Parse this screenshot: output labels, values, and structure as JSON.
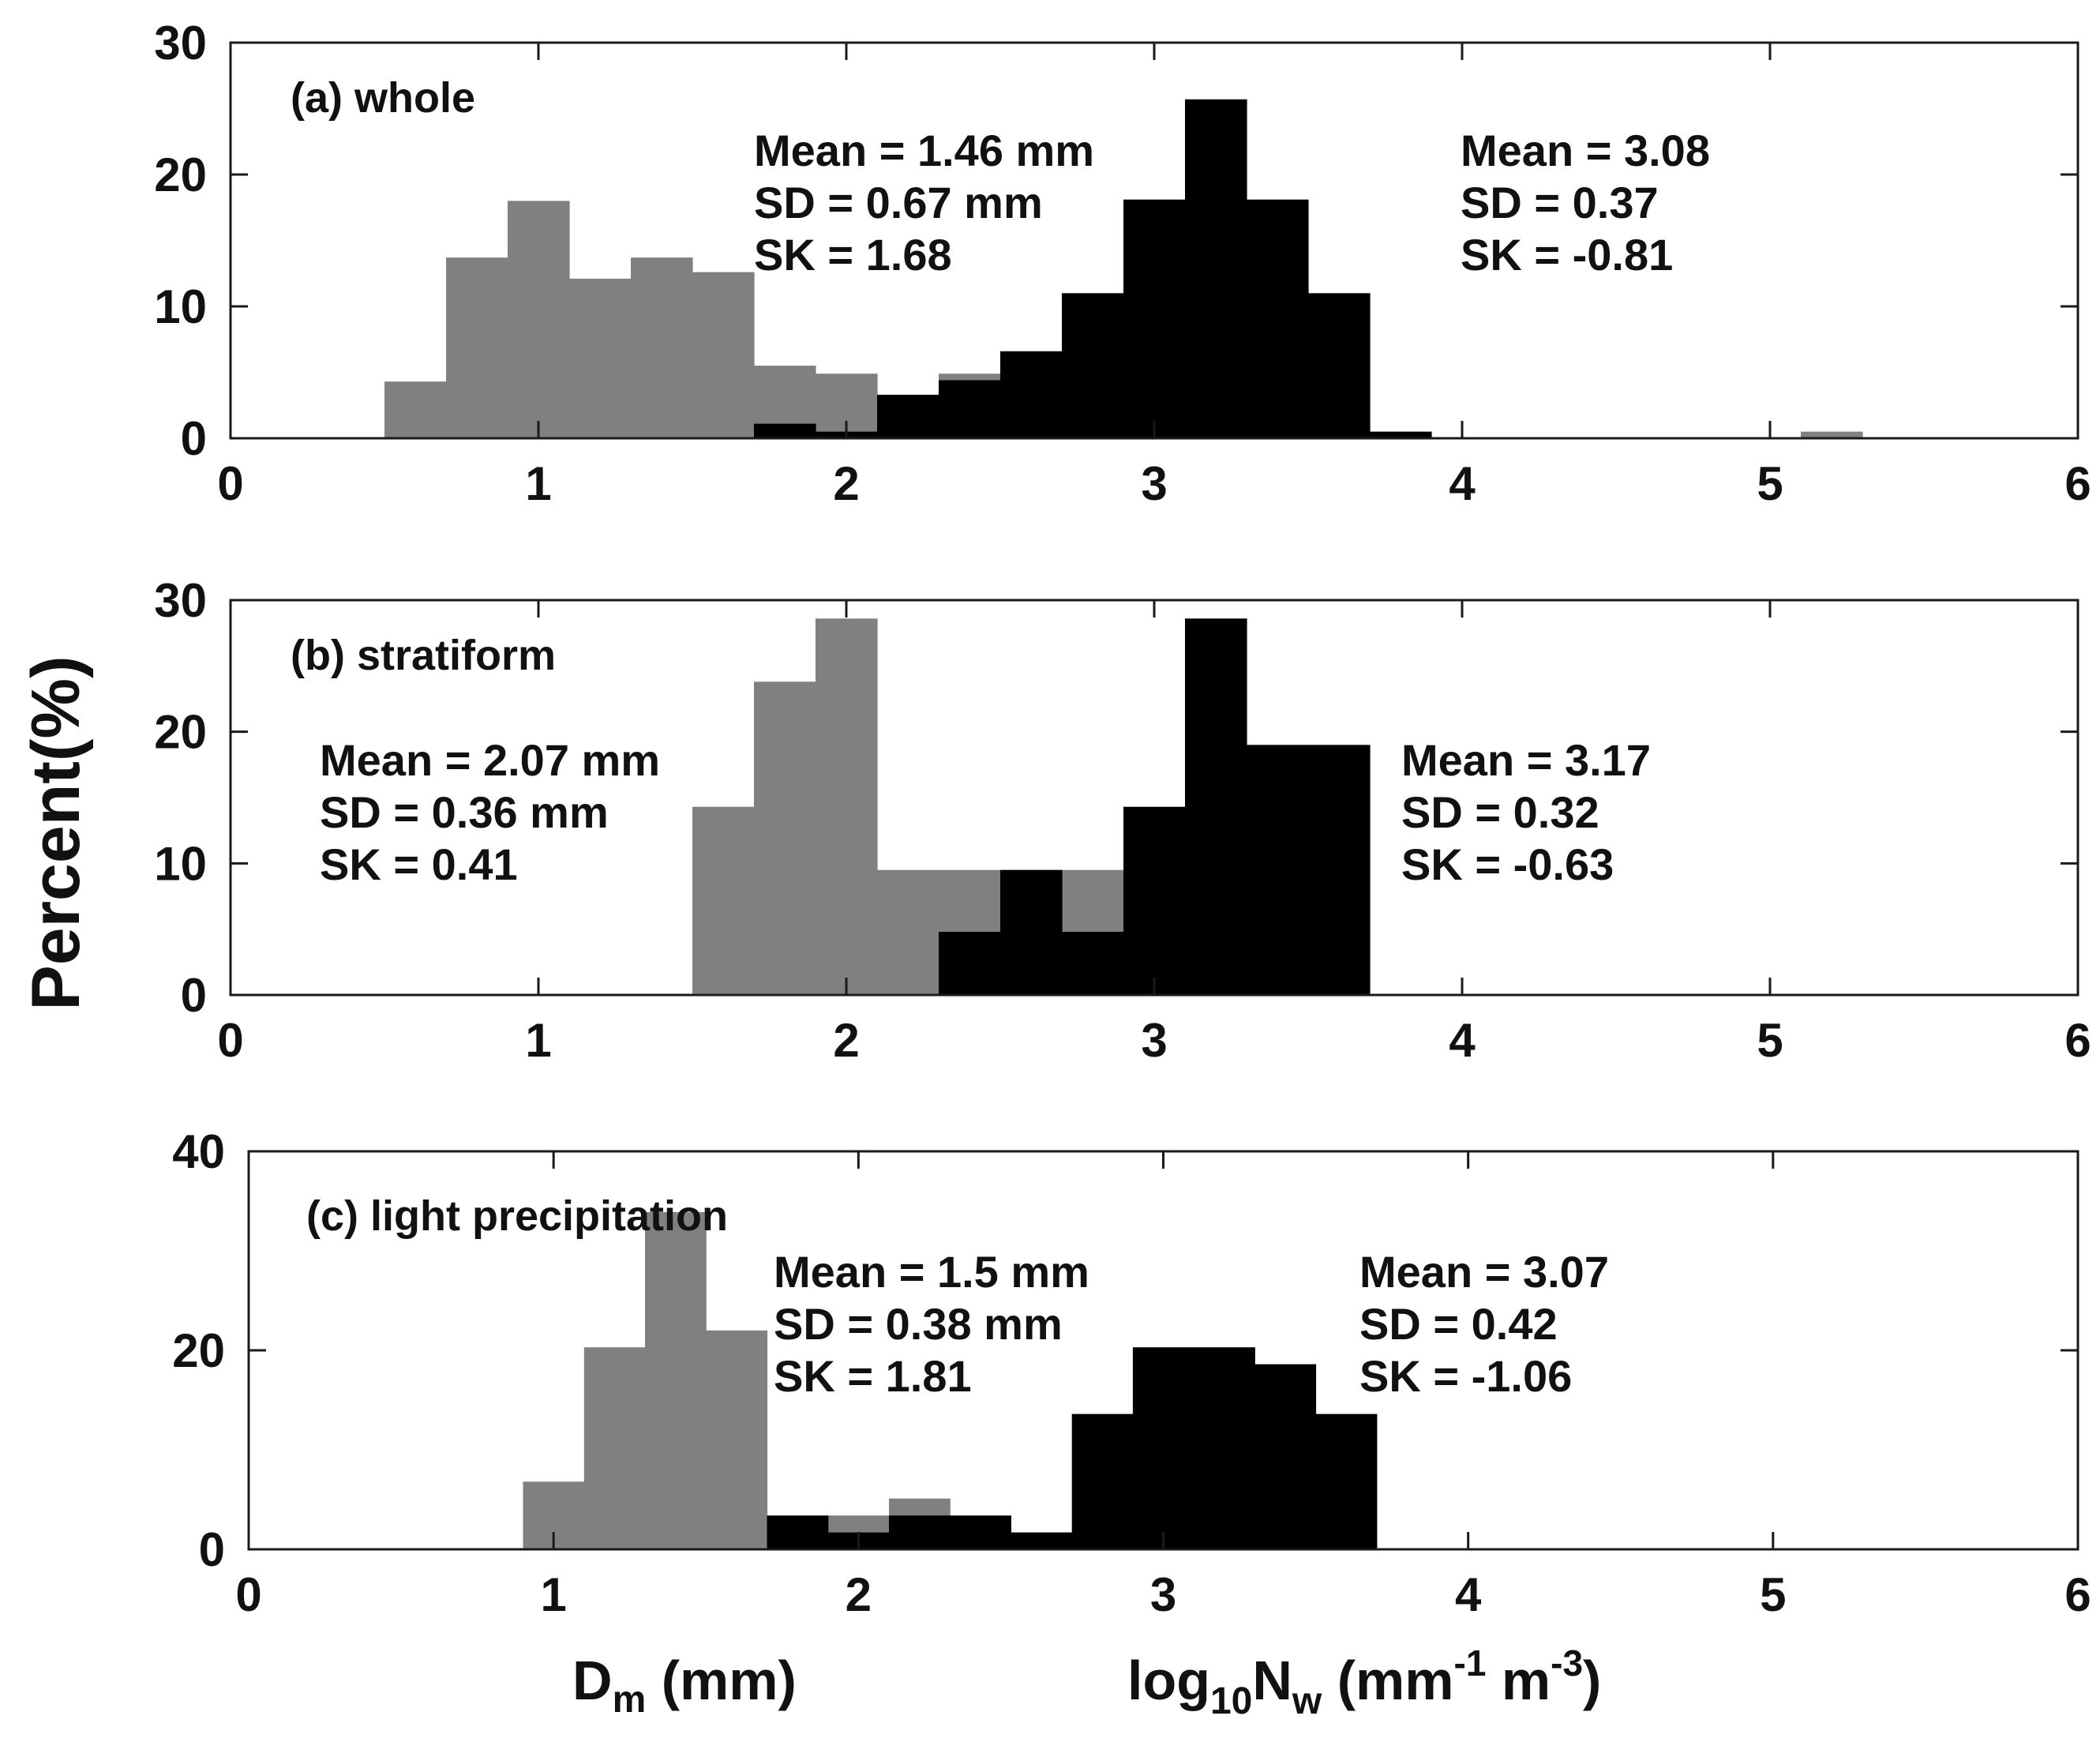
{
  "figure": {
    "ylabel": "Percent(%)",
    "xlabel_dm": {
      "main": "D",
      "sub": "m",
      "rest": " (mm)"
    },
    "xlabel_nw": {
      "a": "log",
      "sub1": "10",
      "b": "N",
      "sub2": "w",
      "c": " (mm",
      "sup1": "-1",
      "d": " m",
      "sup2": "-3",
      "e": ")"
    }
  },
  "chart_data": [
    {
      "type": "bar",
      "title": "(a) whole",
      "xlim": [
        0,
        6
      ],
      "ylim": [
        0,
        30
      ],
      "xticks": [
        "0",
        "1",
        "2",
        "3",
        "4",
        "5",
        "6"
      ],
      "yticks": [
        "0",
        "10",
        "20",
        "30"
      ],
      "series": [
        {
          "name": "Dm (mm)",
          "color": "#808080",
          "bins": [
            [
              0.5,
              0.7,
              4.3
            ],
            [
              0.7,
              0.9,
              13.7
            ],
            [
              0.9,
              1.1,
              18.0
            ],
            [
              1.1,
              1.3,
              12.1
            ],
            [
              1.3,
              1.5,
              13.7
            ],
            [
              1.5,
              1.7,
              12.6
            ],
            [
              1.7,
              1.9,
              5.5
            ],
            [
              1.9,
              2.1,
              4.9
            ],
            [
              2.3,
              2.5,
              4.9
            ],
            [
              5.1,
              5.3,
              0.5
            ]
          ]
        },
        {
          "name": "log10Nw (mm-1 m-3)",
          "color": "#000000",
          "bins": [
            [
              1.7,
              1.9,
              1.1
            ],
            [
              1.9,
              2.1,
              0.5
            ],
            [
              2.1,
              2.3,
              3.3
            ],
            [
              2.3,
              2.5,
              4.4
            ],
            [
              2.5,
              2.7,
              6.6
            ],
            [
              2.7,
              2.9,
              11.0
            ],
            [
              2.9,
              3.1,
              18.1
            ],
            [
              3.1,
              3.3,
              25.7
            ],
            [
              3.3,
              3.5,
              18.1
            ],
            [
              3.5,
              3.7,
              11.0
            ],
            [
              3.7,
              3.9,
              0.5
            ]
          ]
        }
      ],
      "stats": [
        {
          "mean": "Mean = 1.46 mm",
          "sd": "SD = 0.67 mm",
          "sk": "SK = 1.68"
        },
        {
          "mean": "Mean = 3.08",
          "sd": "SD = 0.37",
          "sk": "SK = -0.81"
        }
      ]
    },
    {
      "type": "bar",
      "title": "(b) stratiform",
      "xlim": [
        0,
        6
      ],
      "ylim": [
        0,
        30
      ],
      "xticks": [
        "0",
        "1",
        "2",
        "3",
        "4",
        "5",
        "6"
      ],
      "yticks": [
        "0",
        "10",
        "20",
        "30"
      ],
      "series": [
        {
          "name": "Dm (mm)",
          "color": "#808080",
          "bins": [
            [
              1.5,
              1.7,
              14.3
            ],
            [
              1.7,
              1.9,
              23.8
            ],
            [
              1.9,
              2.1,
              28.6
            ],
            [
              2.1,
              2.3,
              9.5
            ],
            [
              2.3,
              2.5,
              9.5
            ],
            [
              2.5,
              2.7,
              9.5
            ],
            [
              2.7,
              2.9,
              9.5
            ]
          ]
        },
        {
          "name": "log10Nw (mm-1 m-3)",
          "color": "#000000",
          "bins": [
            [
              2.3,
              2.5,
              4.8
            ],
            [
              2.5,
              2.7,
              9.5
            ],
            [
              2.7,
              2.9,
              4.8
            ],
            [
              2.9,
              3.1,
              14.3
            ],
            [
              3.1,
              3.3,
              28.6
            ],
            [
              3.3,
              3.5,
              19.0
            ],
            [
              3.5,
              3.7,
              19.0
            ]
          ]
        }
      ],
      "stats": [
        {
          "mean": "Mean = 2.07 mm",
          "sd": "SD = 0.36 mm",
          "sk": "SK = 0.41"
        },
        {
          "mean": "Mean = 3.17",
          "sd": "SD = 0.32",
          "sk": "SK = -0.63"
        }
      ]
    },
    {
      "type": "bar",
      "title": "(c) light precipitation",
      "xlim": [
        0,
        6
      ],
      "ylim": [
        0,
        40
      ],
      "xticks": [
        "0",
        "1",
        "2",
        "3",
        "4",
        "5",
        "6"
      ],
      "yticks": [
        "0",
        "20",
        "40"
      ],
      "series": [
        {
          "name": "Dm (mm)",
          "color": "#808080",
          "bins": [
            [
              0.9,
              1.1,
              6.8
            ],
            [
              1.1,
              1.3,
              20.3
            ],
            [
              1.3,
              1.5,
              33.9
            ],
            [
              1.5,
              1.7,
              22.0
            ],
            [
              1.9,
              2.1,
              3.4
            ],
            [
              2.1,
              2.3,
              5.1
            ]
          ]
        },
        {
          "name": "log10Nw (mm-1 m-3)",
          "color": "#000000",
          "bins": [
            [
              1.7,
              1.9,
              3.4
            ],
            [
              1.9,
              2.1,
              1.7
            ],
            [
              2.1,
              2.3,
              3.4
            ],
            [
              2.3,
              2.5,
              3.4
            ],
            [
              2.5,
              2.7,
              1.7
            ],
            [
              2.7,
              2.9,
              13.6
            ],
            [
              2.9,
              3.1,
              20.3
            ],
            [
              3.1,
              3.3,
              20.3
            ],
            [
              3.3,
              3.5,
              18.6
            ],
            [
              3.5,
              3.7,
              13.6
            ]
          ]
        }
      ],
      "stats": [
        {
          "mean": "Mean = 1.5 mm",
          "sd": "SD = 0.38 mm",
          "sk": "SK = 1.81"
        },
        {
          "mean": "Mean = 3.07",
          "sd": "SD = 0.42",
          "sk": "SK = -1.06"
        }
      ]
    }
  ]
}
